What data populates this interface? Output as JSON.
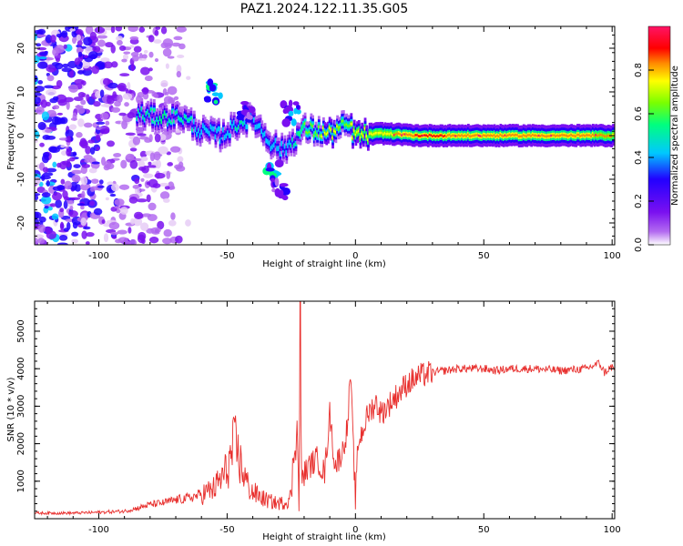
{
  "title": "PAZ1.2024.122.11.35.G05",
  "colors": {
    "snr_line": "#e8302e",
    "axis": "#000000",
    "colormap": [
      "#ffffff",
      "#e6ccf6",
      "#b36bf0",
      "#7a10f0",
      "#2200ff",
      "#00c8ff",
      "#00ff7f",
      "#7aff00",
      "#ffff00",
      "#ff8c00",
      "#ff0000",
      "#ff1466"
    ]
  },
  "chart_data": [
    {
      "type": "heatmap",
      "title": "PAZ1.2024.122.11.35.G05",
      "xlabel": "Height of straight line (km)",
      "ylabel": "Frequency (Hz)",
      "xlim": [
        -125,
        101
      ],
      "ylim": [
        -25,
        25
      ],
      "x_ticks": [
        -100,
        -50,
        0,
        50,
        100
      ],
      "y_ticks": [
        -20,
        -10,
        0,
        10,
        20
      ],
      "colorbar": {
        "label": "Normalized spectral amplitude",
        "range": [
          0.0,
          1.0
        ],
        "ticks": [
          0.0,
          0.2,
          0.4,
          0.6,
          0.8
        ]
      },
      "ridge": [
        {
          "x": -85,
          "freq": 5.0,
          "amp": 0.45
        },
        {
          "x": -75,
          "freq": 4.0,
          "amp": 0.5
        },
        {
          "x": -68,
          "freq": 4.5,
          "amp": 0.45
        },
        {
          "x": -60,
          "freq": 1.0,
          "amp": 0.4
        },
        {
          "x": -52,
          "freq": 0.0,
          "amp": 0.35
        },
        {
          "x": -45,
          "freq": 3.0,
          "amp": 0.45
        },
        {
          "x": -40,
          "freq": 4.0,
          "amp": 0.35
        },
        {
          "x": -33,
          "freq": -1.5,
          "amp": 0.4
        },
        {
          "x": -28,
          "freq": -3.5,
          "amp": 0.35
        },
        {
          "x": -20,
          "freq": 1.5,
          "amp": 0.55
        },
        {
          "x": -10,
          "freq": 0.5,
          "amp": 0.7
        },
        {
          "x": -3,
          "freq": 2.5,
          "amp": 0.6
        },
        {
          "x": 0,
          "freq": 0.0,
          "amp": 0.75
        },
        {
          "x": 10,
          "freq": 0.5,
          "amp": 0.7
        },
        {
          "x": 25,
          "freq": 0.0,
          "amp": 0.85
        },
        {
          "x": 50,
          "freq": 0.0,
          "amp": 0.8
        },
        {
          "x": 75,
          "freq": 0.0,
          "amp": 0.8
        },
        {
          "x": 100,
          "freq": 0.0,
          "amp": 0.75
        }
      ]
    },
    {
      "type": "line",
      "xlabel": "Height of straight line (km)",
      "ylabel": "SNR (10 * v/v)",
      "xlim": [
        -125,
        101
      ],
      "ylim": [
        0,
        5800
      ],
      "x_ticks": [
        -100,
        -50,
        0,
        50,
        100
      ],
      "y_ticks": [
        1000,
        2000,
        3000,
        4000,
        5000
      ],
      "series": [
        {
          "x": [
            -125,
            -110,
            -100,
            -90,
            -85,
            -80,
            -75,
            -70,
            -65,
            -60,
            -55,
            -50,
            -47,
            -45,
            -42,
            -40,
            -35,
            -30,
            -27,
            -25,
            -23,
            -22,
            -21.5,
            -21,
            -20,
            -18,
            -15,
            -12,
            -10,
            -8,
            -5,
            -3,
            -2,
            -1,
            0,
            1,
            3,
            5,
            8,
            10,
            15,
            20,
            25,
            30,
            35,
            40,
            45,
            50,
            55,
            60,
            70,
            80,
            90,
            95,
            97,
            100,
            101
          ],
          "y": [
            150,
            150,
            170,
            200,
            280,
            380,
            420,
            500,
            550,
            650,
            800,
            1300,
            2000,
            1500,
            900,
            700,
            500,
            400,
            450,
            600,
            3000,
            300,
            5800,
            1000,
            1200,
            1400,
            1600,
            1200,
            2800,
            1400,
            1800,
            2500,
            3900,
            2200,
            500,
            2000,
            2400,
            2800,
            3100,
            2800,
            3200,
            3600,
            3800,
            3900,
            3950,
            4000,
            4000,
            4000,
            3950,
            4000,
            4000,
            3950,
            4000,
            4150,
            3900,
            4050,
            3950
          ]
        }
      ]
    }
  ]
}
